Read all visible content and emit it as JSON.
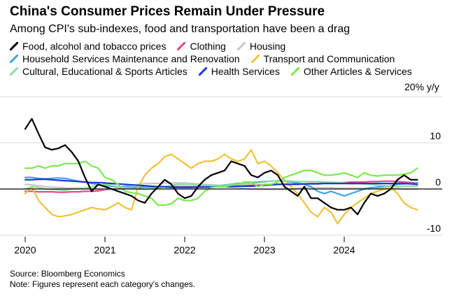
{
  "title": "China's Consumer Prices Remain Under Pressure",
  "subtitle": "Among CPI's sub-indexes, food and transportation have been a drag",
  "footer": {
    "source": "Source: Bloomberg Economics",
    "note": "Note: Figures represent each category's changes."
  },
  "chart_data": {
    "type": "line",
    "ylabel": "20% y/y",
    "ylim": [
      -10,
      20
    ],
    "yticks": [
      10,
      0,
      -10
    ],
    "xlim": [
      2020.0,
      2025.0
    ],
    "xticks": [
      "2020",
      "2021",
      "2022",
      "2023",
      "2024"
    ],
    "grid": "horizontal",
    "legend_position": "top",
    "series": [
      {
        "name": "Food, alcohol and tobacco prices",
        "color": "#000000",
        "start": "2020-01",
        "values": [
          13,
          15.2,
          12,
          9,
          8.5,
          8.8,
          9.5,
          8,
          6,
          2.5,
          -0.5,
          1,
          0.5,
          0,
          -0.5,
          -1,
          -1.5,
          -2.5,
          -3,
          -1,
          0.5,
          2,
          1,
          -1,
          -2,
          -1.5,
          0.5,
          2,
          3,
          3.5,
          4,
          6,
          5.5,
          5,
          3,
          2.5,
          3.5,
          4,
          3,
          0.5,
          -0.5,
          -1.5,
          0.5,
          -2,
          -2,
          -3,
          -4,
          -4.5,
          -4.5,
          -4,
          -5.5,
          -3,
          -1,
          -1.5,
          -1,
          0,
          2,
          3,
          2,
          2
        ]
      },
      {
        "name": "Clothing",
        "color": "#e8458b",
        "start": "2020-01",
        "values": [
          -0.5,
          -0.5,
          -0.6,
          -0.6,
          -0.6,
          -0.7,
          -0.7,
          -0.6,
          -0.6,
          -0.5,
          -0.5,
          -0.4,
          -0.2,
          0,
          0.1,
          0.2,
          0.3,
          0.3,
          0.4,
          0.4,
          0.5,
          0.5,
          0.5,
          0.5,
          0.5,
          0.5,
          0.5,
          0.6,
          0.6,
          0.6,
          0.6,
          0.6,
          0.6,
          0.7,
          0.8,
          0.8,
          0.9,
          1,
          1,
          1,
          1,
          1.1,
          1.1,
          1.2,
          1.2,
          1.3,
          1.3,
          1.4,
          1.4,
          1.5,
          1.5,
          1.5,
          1.6,
          1.6,
          1.7,
          1.7,
          1.6,
          1.5,
          1.4,
          1.3
        ]
      },
      {
        "name": "Housing",
        "color": "#c8c8c8",
        "start": "2020-01",
        "values": [
          1,
          0.9,
          0.7,
          0.5,
          0.4,
          0.3,
          0.2,
          0.2,
          0.2,
          0.2,
          0.1,
          0,
          -0.1,
          0,
          0.3,
          0.6,
          0.8,
          1,
          1.2,
          1.2,
          1.2,
          1.3,
          1.3,
          1.3,
          1.3,
          1.2,
          1.1,
          1,
          0.9,
          0.8,
          0.6,
          0.4,
          0.3,
          0.1,
          0,
          -0.1,
          -0.1,
          -0.1,
          -0.1,
          -0.1,
          0,
          0.2,
          0.3,
          0.3,
          0.3,
          0.3,
          0.3,
          0.2,
          0.2,
          0.2,
          0.2,
          0.2,
          0.1,
          0.1,
          0.1,
          0.1,
          0.1,
          0,
          0,
          0
        ]
      },
      {
        "name": "Household Services Maintenance and Renovation",
        "color": "#3ea6ea",
        "start": "2020-01",
        "values": [
          2.5,
          2.5,
          2.3,
          2.2,
          2.3,
          2.4,
          2.3,
          2,
          1.7,
          1.5,
          1.2,
          1,
          0.7,
          0.6,
          0.5,
          0.5,
          0.4,
          0.4,
          0.4,
          0.4,
          0.4,
          0.4,
          0.3,
          0.3,
          0.3,
          0.3,
          0.4,
          0.5,
          0.6,
          0.7,
          0.9,
          1,
          1.2,
          1.3,
          1.4,
          1.5,
          1.6,
          1.7,
          1.8,
          1.7,
          1.5,
          1.3,
          1,
          0.5,
          -0.5,
          -1,
          -0.5,
          -1,
          -1.5,
          -1,
          -0.5,
          0,
          0.3,
          0.4,
          0.5,
          0.7,
          1,
          1.1,
          1.2,
          1.3
        ]
      },
      {
        "name": "Transport and Communication",
        "color": "#f1c237",
        "start": "2020-01",
        "values": [
          -1,
          0.5,
          -2.5,
          -4,
          -5.5,
          -6,
          -5.8,
          -5.5,
          -5,
          -4.5,
          -4,
          -4.3,
          -4.5,
          -3.8,
          -3,
          -4,
          -4.5,
          0.5,
          3,
          4.5,
          5.5,
          7,
          7.5,
          6.5,
          5.5,
          4.5,
          5.5,
          6,
          6,
          6.5,
          7.5,
          6.5,
          6,
          6.5,
          8.5,
          5.5,
          6,
          5,
          3.5,
          2,
          0.5,
          -1,
          -3,
          -5,
          -6,
          -4,
          -5,
          -7.5,
          -5.5,
          -4,
          -3,
          -2,
          -1,
          -0.5,
          0,
          0.5,
          -1,
          -3,
          -4,
          -4.5
        ]
      },
      {
        "name": "Cultural, Educational & Sports Articles",
        "color": "#88e09a",
        "start": "2020-01",
        "values": [
          0,
          0.5,
          0.3,
          0,
          -0.1,
          -0.2,
          -0.3,
          0,
          0.1,
          0.2,
          0.5,
          0.8,
          1,
          0.8,
          0.5,
          0.3,
          0.1,
          0,
          -0.1,
          0,
          0.2,
          0.5,
          0.8,
          1,
          1,
          1,
          0.9,
          0.8,
          0.8,
          0.8,
          0.8,
          0.9,
          1,
          1.1,
          1.2,
          1.3,
          1.5,
          1.7,
          1.8,
          1.8,
          1.7,
          1.6,
          1.6,
          1.6,
          1.6,
          1.5,
          1.5,
          1.4,
          1.3,
          1.1,
          1.2,
          1.1,
          1,
          0.8,
          0.7,
          0.6,
          0.5,
          0.6,
          0.6,
          0.6
        ]
      },
      {
        "name": "Health Services",
        "color": "#1f39c9",
        "start": "2020-01",
        "values": [
          2,
          2,
          2.1,
          2.1,
          2,
          1.9,
          1.8,
          1.7,
          1.6,
          1.5,
          1.4,
          1.4,
          1.3,
          1.2,
          1.1,
          1,
          0.9,
          0.8,
          0.7,
          0.6,
          0.5,
          0.5,
          0.4,
          0.4,
          0.4,
          0.4,
          0.4,
          0.4,
          0.4,
          0.5,
          0.5,
          0.5,
          0.6,
          0.6,
          0.6,
          0.7,
          0.8,
          0.9,
          1,
          1,
          1,
          1,
          1.1,
          1.1,
          1.1,
          1.2,
          1.2,
          1.2,
          1.2,
          1.2,
          1.2,
          1.2,
          1.2,
          1.2,
          1.2,
          1.2,
          1.2,
          1.2,
          1.1,
          1
        ]
      },
      {
        "name": "Other Articles & Services",
        "color": "#7ce852",
        "start": "2020-01",
        "values": [
          4.5,
          4.5,
          5,
          4.5,
          5,
          5,
          5.5,
          5.5,
          5.5,
          6,
          5,
          4.5,
          2.5,
          2,
          1,
          -0.5,
          -0.8,
          -1,
          -1.5,
          -2,
          -3.5,
          -3.5,
          -3.2,
          -2,
          -2.5,
          -2.5,
          -2,
          -0.5,
          0.3,
          0.5,
          0.5,
          0.8,
          1,
          1.5,
          1.5,
          0.5,
          1,
          1,
          1.5,
          2.5,
          3,
          3.5,
          4,
          4,
          3.5,
          3,
          3,
          3.2,
          3.5,
          3,
          2.5,
          3.5,
          3,
          2.8,
          3,
          3,
          3,
          3.2,
          3.5,
          4.5
        ]
      }
    ]
  }
}
